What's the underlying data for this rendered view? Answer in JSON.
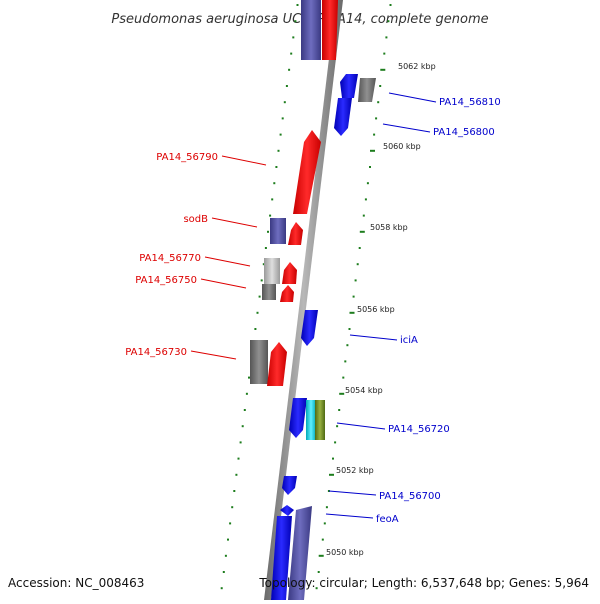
{
  "header": {
    "title": "Pseudomonas aeruginosa UCBPP-PA14, complete genome"
  },
  "footer": {
    "accession": "Accession: NC_008463",
    "topology": "Topology: circular; Length: 6,537,648 bp; Genes: 5,964"
  },
  "scale_labels": [
    "5062 kbp",
    "5060 kbp",
    "5058 kbp",
    "5056 kbp",
    "5054 kbp",
    "5052 kbp",
    "5050 kbp"
  ],
  "gene_labels_left": [
    "PA14_56790",
    "sodB",
    "PA14_56770",
    "PA14_56750",
    "PA14_56730"
  ],
  "gene_labels_right": [
    "PA14_56810",
    "PA14_56800",
    "iciA",
    "PA14_56720",
    "PA14_56700",
    "feoA"
  ],
  "colors": {
    "forward_gene": "#ee0000",
    "reverse_gene": "#0000ee",
    "gray_gene": "#6e6e6e",
    "purple_gene": "#4b4a9c",
    "backbone": "#8c8c8c",
    "scale_ticks": "#1d7d1d",
    "label_red": "#dd0000",
    "label_blue": "#0000cc"
  }
}
